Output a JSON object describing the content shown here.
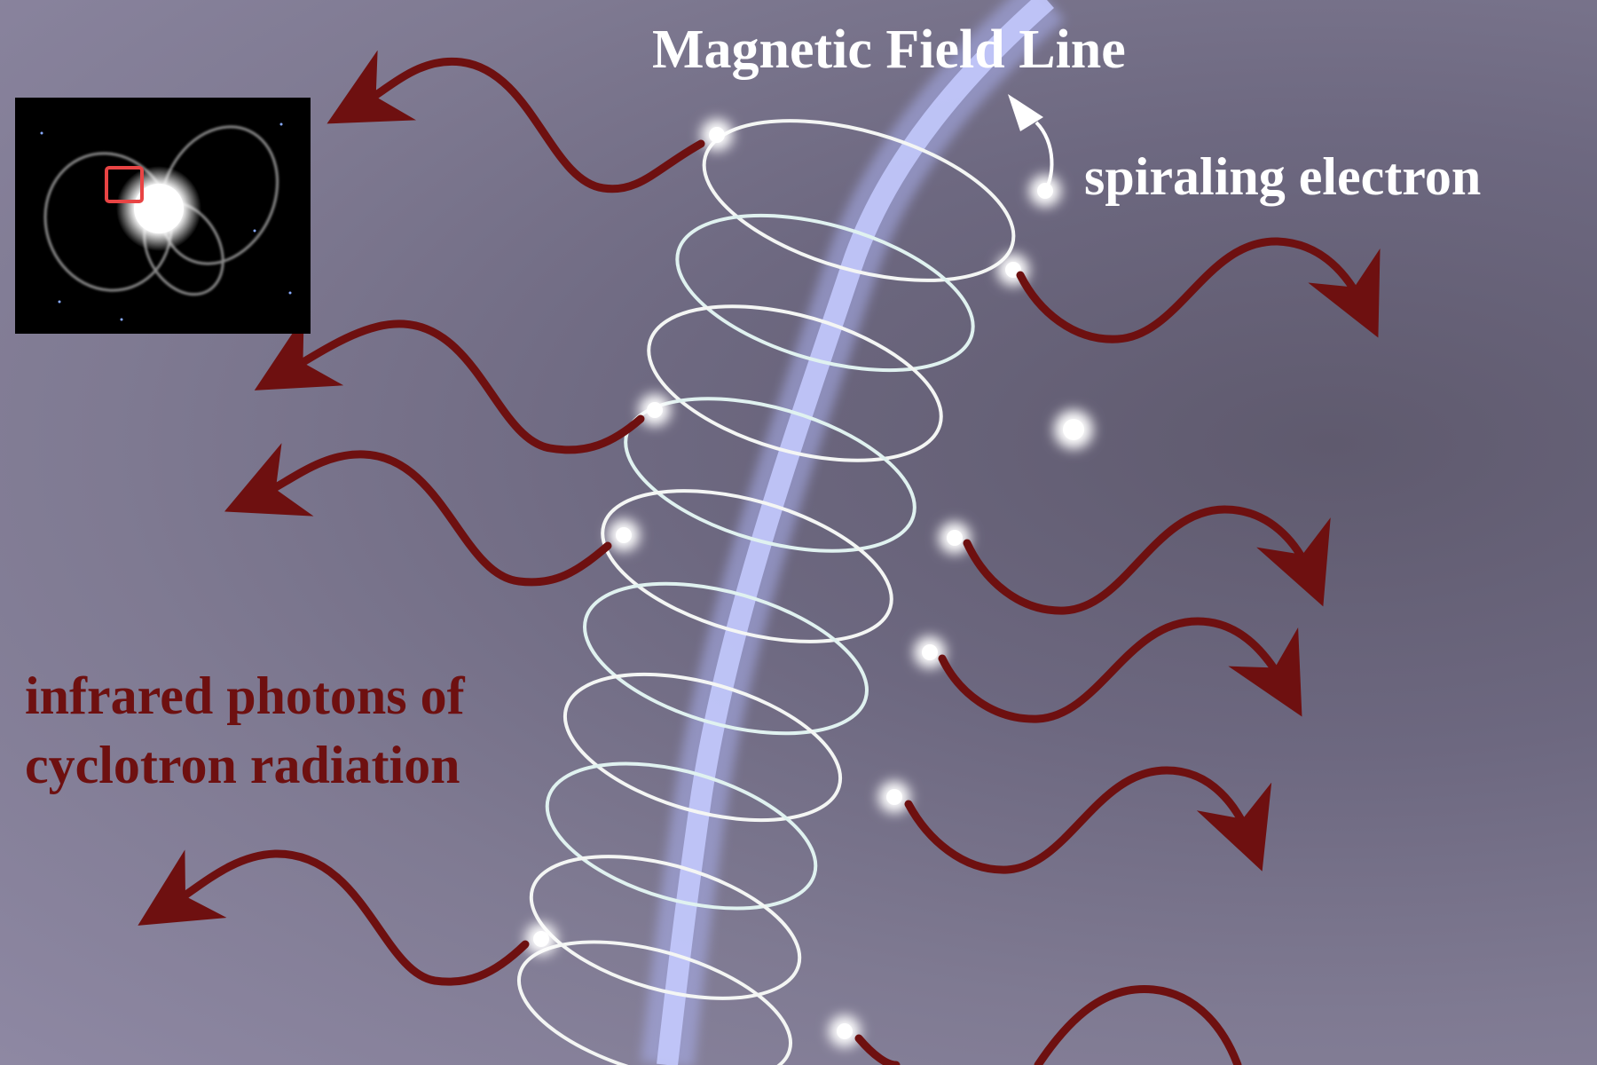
{
  "labels": {
    "field_line": "Magnetic Field Line",
    "electron": "spiraling electron",
    "photons_line1": "infrared photons of",
    "photons_line2": "cyclotron radiation"
  },
  "colors": {
    "white_text": "#ffffff",
    "photon_red": "#6e1010",
    "field_line": "#b8bdf0",
    "inset_highlight": "#e84444"
  },
  "icons": {
    "inset": "star-magnetosphere-thumbnail",
    "field": "magnetic-field-line",
    "helix": "electron-helix-path",
    "arrows": "wavy-photon-arrow"
  }
}
